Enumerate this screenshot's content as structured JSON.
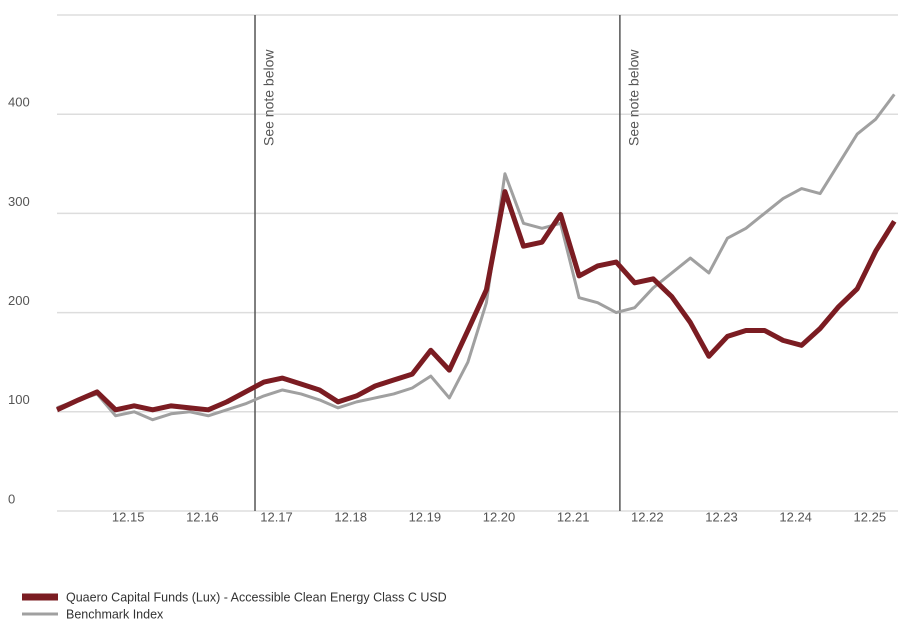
{
  "chart_data": {
    "type": "line",
    "x": [
      2014.96,
      2015.25,
      2015.5,
      2015.75,
      2016.0,
      2016.25,
      2016.5,
      2016.75,
      2017.0,
      2017.25,
      2017.5,
      2017.75,
      2018.0,
      2018.25,
      2018.5,
      2018.75,
      2019.0,
      2019.25,
      2019.5,
      2019.75,
      2020.0,
      2020.25,
      2020.5,
      2020.75,
      2021.0,
      2021.25,
      2021.5,
      2021.75,
      2022.0,
      2022.25,
      2022.5,
      2022.75,
      2023.0,
      2023.25,
      2023.5,
      2023.75,
      2024.0,
      2024.25,
      2024.5,
      2024.75,
      2025.0,
      2025.25,
      2025.5,
      2025.75,
      2026.0,
      2026.25
    ],
    "series": [
      {
        "name": "Quaero Capital Funds (Lux) - Accessible Clean Energy Class C USD",
        "color": "#7b1c22",
        "values": [
          102,
          112,
          120,
          102,
          106,
          102,
          106,
          104,
          102,
          110,
          120,
          130,
          134,
          128,
          122,
          110,
          116,
          126,
          132,
          138,
          162,
          142,
          182,
          223,
          322,
          267,
          271,
          299,
          237,
          247,
          251,
          230,
          234,
          216,
          190,
          156,
          176,
          182,
          182,
          172,
          167,
          184,
          206,
          224,
          262,
          292
        ]
      },
      {
        "name": "Benchmark Index",
        "color": "#a0a0a0",
        "values": [
          104,
          112,
          118,
          96,
          100,
          92,
          98,
          100,
          96,
          102,
          108,
          116,
          122,
          118,
          112,
          104,
          110,
          114,
          118,
          124,
          136,
          114,
          150,
          210,
          340,
          290,
          285,
          290,
          215,
          210,
          200,
          205,
          225,
          240,
          255,
          240,
          275,
          285,
          300,
          315,
          325,
          320,
          350,
          380,
          395,
          420
        ]
      }
    ],
    "xlim": [
      2014.96,
      2026.3
    ],
    "xticks": [
      {
        "value": 2015.92,
        "label": "12.15"
      },
      {
        "value": 2016.92,
        "label": "12.16"
      },
      {
        "value": 2017.92,
        "label": "12.17"
      },
      {
        "value": 2018.92,
        "label": "12.18"
      },
      {
        "value": 2019.92,
        "label": "12.19"
      },
      {
        "value": 2020.92,
        "label": "12.20"
      },
      {
        "value": 2021.92,
        "label": "12.21"
      },
      {
        "value": 2022.92,
        "label": "12.22"
      },
      {
        "value": 2023.92,
        "label": "12.23"
      },
      {
        "value": 2024.92,
        "label": "12.24"
      },
      {
        "value": 2025.92,
        "label": "12.25"
      }
    ],
    "ylim": [
      0,
      500
    ],
    "yticks": [
      0,
      100,
      200,
      300,
      400
    ],
    "grid": true,
    "annotations": [
      {
        "x": 2017.63,
        "label": "See note below"
      },
      {
        "x": 2022.55,
        "label": "See note below"
      }
    ],
    "legend": "bottom-left"
  }
}
